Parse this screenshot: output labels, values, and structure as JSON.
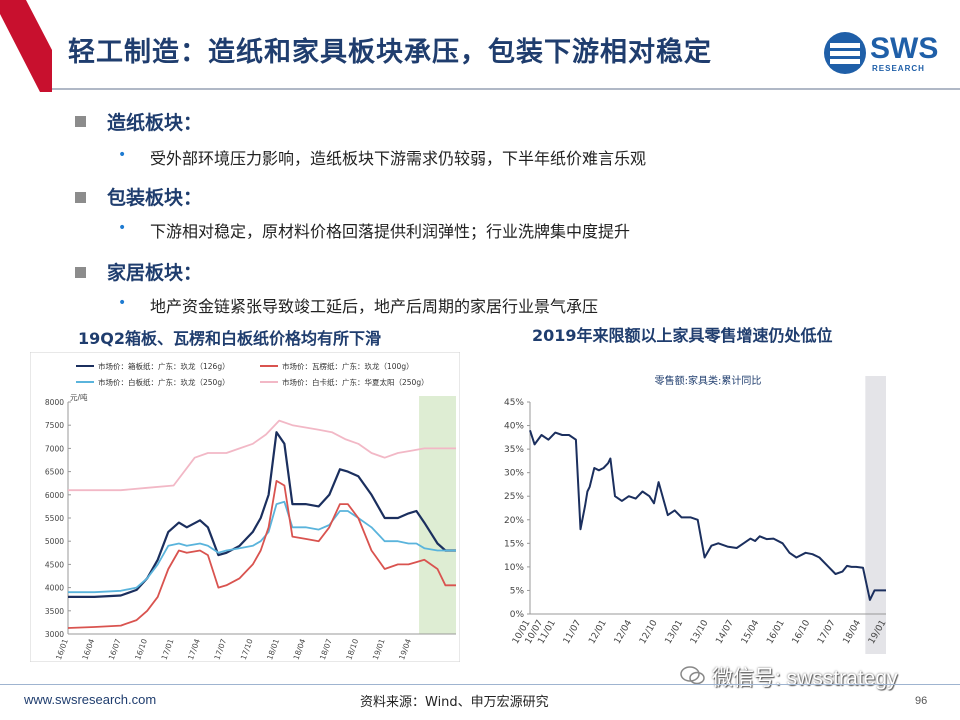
{
  "slide": {
    "title": "轻工制造：造纸和家具板块承压，包装下游相对稳定",
    "logo_text": "SWS",
    "logo_sub": "RESEARCH",
    "accent": "#1f3d6e",
    "bar_color": "#c8102e"
  },
  "sections": [
    {
      "heading": "造纸板块：",
      "bullet": "受外部环境压力影响，造纸板块下游需求仍较弱，下半年纸价难言乐观"
    },
    {
      "heading": "包装板块：",
      "bullet": "下游相对稳定，原材料价格回落提供利润弹性；行业洗牌集中度提升"
    },
    {
      "heading": "家居板块：",
      "bullet": "地产资金链紧张导致竣工延后，地产后周期的家居行业景气承压"
    }
  ],
  "footer": {
    "url": "www.swsresearch.com",
    "source": "资料来源：Wind、申万宏源研究",
    "page": "96",
    "wechat": "微信号: swsstrategy"
  },
  "chart_data": [
    {
      "type": "line",
      "title": "19Q2箱板、瓦楞和白板纸价格均有所下滑",
      "ylabel": "元/吨",
      "ylim": [
        3000,
        8000
      ],
      "yticks": [
        3000,
        3500,
        4000,
        4500,
        5000,
        5500,
        6000,
        6500,
        7000,
        7500,
        8000
      ],
      "xticks": [
        "16/01",
        "16/04",
        "16/07",
        "16/10",
        "17/01",
        "17/04",
        "17/07",
        "17/10",
        "18/01",
        "18/04",
        "18/07",
        "18/10",
        "19/01",
        "19/04"
      ],
      "shaded_from": 13.3,
      "series": [
        {
          "name": "市场价：箱板纸：广东：玖龙（126g）",
          "color": "#1b2f5e",
          "x": [
            0,
            1,
            2,
            2.6,
            3,
            3.4,
            3.8,
            4.2,
            4.5,
            5,
            5.3,
            5.7,
            6,
            6.5,
            7,
            7.3,
            7.6,
            7.9,
            8.2,
            8.5,
            9,
            9.5,
            9.9,
            10.3,
            10.6,
            11,
            11.5,
            12,
            12.5,
            12.9,
            13.2,
            13.5,
            14,
            14.3,
            14.7
          ],
          "y": [
            3800,
            3800,
            3830,
            3950,
            4200,
            4600,
            5200,
            5400,
            5300,
            5450,
            5300,
            4700,
            4750,
            4900,
            5200,
            5500,
            6000,
            7350,
            7100,
            5800,
            5800,
            5750,
            6000,
            6550,
            6500,
            6400,
            6000,
            5500,
            5500,
            5600,
            5650,
            5400,
            4950,
            4800,
            4800
          ]
        },
        {
          "name": "市场价：白板纸：广东：玖龙（250g）",
          "color": "#5ab4dc",
          "x": [
            0,
            1,
            2,
            2.6,
            3,
            3.4,
            3.8,
            4.2,
            4.5,
            5,
            5.3,
            5.7,
            6,
            6.5,
            7,
            7.3,
            7.6,
            7.9,
            8.2,
            8.5,
            9,
            9.5,
            9.9,
            10.3,
            10.6,
            11,
            11.5,
            12,
            12.5,
            12.9,
            13.2,
            13.5,
            14,
            14.3,
            14.7
          ],
          "y": [
            3900,
            3900,
            3930,
            4000,
            4200,
            4500,
            4900,
            4950,
            4900,
            4950,
            4900,
            4750,
            4800,
            4850,
            4900,
            5000,
            5200,
            5800,
            5850,
            5300,
            5300,
            5250,
            5350,
            5650,
            5650,
            5500,
            5300,
            5000,
            5000,
            4950,
            4950,
            4850,
            4800,
            4800,
            4800
          ]
        },
        {
          "name": "市场价：瓦楞纸：广东：玖龙（100g）",
          "color": "#d9534f",
          "x": [
            0,
            1,
            2,
            2.6,
            3,
            3.4,
            3.8,
            4.2,
            4.5,
            5,
            5.3,
            5.7,
            6,
            6.5,
            7,
            7.3,
            7.6,
            7.9,
            8.2,
            8.5,
            9,
            9.5,
            9.9,
            10.3,
            10.6,
            11,
            11.5,
            12,
            12.5,
            12.9,
            13.2,
            13.5,
            14,
            14.3,
            14.7
          ],
          "y": [
            3130,
            3150,
            3180,
            3300,
            3500,
            3800,
            4400,
            4800,
            4750,
            4800,
            4700,
            4000,
            4050,
            4200,
            4500,
            4800,
            5300,
            6300,
            6200,
            5100,
            5050,
            5000,
            5300,
            5800,
            5800,
            5500,
            4800,
            4400,
            4500,
            4500,
            4550,
            4600,
            4400,
            4050,
            4050
          ]
        },
        {
          "name": "市场价：白卡纸：广东：华夏太阳（250g）",
          "color": "#f2b8c6",
          "x": [
            0,
            1,
            2,
            3,
            4,
            4.8,
            5.3,
            6,
            6.5,
            7,
            7.5,
            8,
            8.5,
            9,
            9.5,
            10,
            10.5,
            11,
            11.5,
            12,
            12.5,
            13,
            13.5,
            14,
            14.7
          ],
          "y": [
            6100,
            6100,
            6100,
            6150,
            6200,
            6800,
            6900,
            6900,
            7000,
            7100,
            7300,
            7600,
            7500,
            7450,
            7400,
            7350,
            7200,
            7100,
            6900,
            6800,
            6900,
            6950,
            7000,
            7000,
            7000
          ]
        }
      ]
    },
    {
      "type": "line",
      "title": "2019年来限额以上家具零售增速仍处低位",
      "series_label": "零售额:家具类:累计同比",
      "ylim": [
        0,
        45
      ],
      "yticks": [
        "0%",
        "5%",
        "10%",
        "15%",
        "20%",
        "25%",
        "30%",
        "35%",
        "40%",
        "45%"
      ],
      "xticks": [
        "10/01",
        "10/07",
        "11/01",
        "11/07",
        "12/01",
        "12/04",
        "12/10",
        "13/01",
        "13/10",
        "14/07",
        "15/04",
        "16/01",
        "16/10",
        "17/07",
        "18/04",
        "19/01"
      ],
      "shaded_from": 14.6,
      "series": [
        {
          "name": "零售额:家具类:累计同比",
          "color": "#1b2f5e",
          "x": [
            0,
            0.2,
            0.5,
            0.8,
            1.1,
            1.4,
            1.7,
            2,
            2.2,
            2.4,
            2.5,
            2.6,
            2.8,
            3,
            3.2,
            3.4,
            3.5,
            3.7,
            4,
            4.3,
            4.6,
            4.9,
            5.2,
            5.4,
            5.6,
            6,
            6.3,
            6.6,
            7,
            7.3,
            7.6,
            7.9,
            8.2,
            8.6,
            9,
            9.3,
            9.6,
            9.8,
            10,
            10.3,
            10.6,
            11,
            11.3,
            11.6,
            12,
            12.3,
            12.6,
            13,
            13.3,
            13.6,
            13.8,
            14,
            14.2,
            14.5,
            14.8,
            15,
            15.2,
            15.5
          ],
          "y": [
            39,
            36,
            38,
            37,
            38.5,
            38,
            38,
            37,
            18,
            23,
            26,
            27,
            31,
            30.5,
            31,
            32,
            33,
            25,
            24,
            25,
            24.5,
            26,
            25,
            23.5,
            28,
            21,
            22,
            20.5,
            20.5,
            20,
            12,
            14.5,
            15,
            14.3,
            14,
            15,
            16,
            15.5,
            16.5,
            15.9,
            16,
            15,
            13,
            12,
            13,
            12.7,
            12,
            10,
            8.5,
            9,
            10.2,
            10,
            10,
            9.8,
            3,
            5,
            5,
            5
          ]
        }
      ]
    }
  ]
}
